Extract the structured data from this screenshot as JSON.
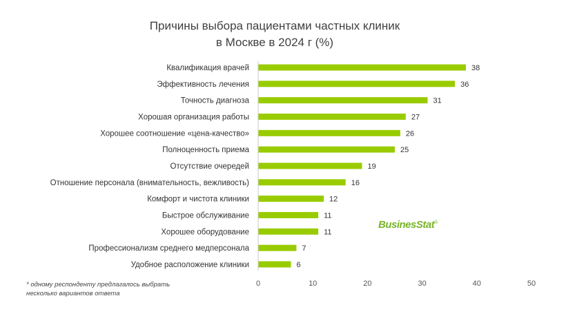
{
  "chart_data": {
    "type": "bar",
    "orientation": "horizontal",
    "title_line1": "Причины выбора пациентами частных клиник",
    "title_line2": "в Москве в 2024 г (%)",
    "categories": [
      "Квалификация врачей",
      "Эффективность  лечения",
      "Точность диагноза",
      "Хорошая организация работы",
      "Хорошее  соотношение  «цена-качество»",
      "Полноценность приема",
      "Отсутствие очередей",
      "Отношение  персонала (внимательность,  вежливость)",
      "Комфорт и чистота клиники",
      "Быстрое обслуживание",
      "Хорошее  оборудование",
      "Профессионализм среднего медперсонала",
      "Удобное расположение клиники"
    ],
    "values": [
      38,
      36,
      31,
      27,
      26,
      25,
      19,
      16,
      12,
      11,
      11,
      7,
      6
    ],
    "xlim": [
      0,
      50
    ],
    "xticks": [
      "0",
      "10",
      "20",
      "30",
      "40",
      "50"
    ],
    "grid": false,
    "bar_color": "#99cc00"
  },
  "footnote": {
    "line1": "* одному респонденту предлагалось выбрать",
    "line2": "несколько вариантов ответа"
  },
  "logo": {
    "text": "BusinesStat",
    "mark": "®"
  }
}
